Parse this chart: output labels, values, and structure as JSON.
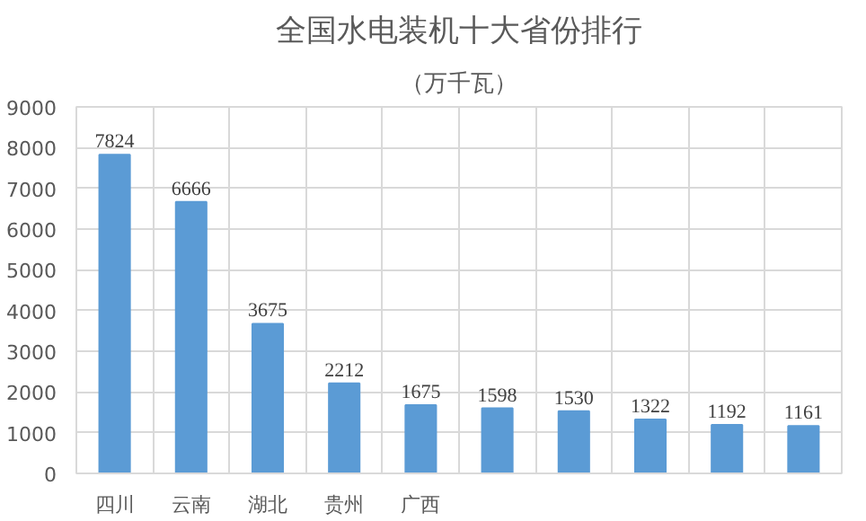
{
  "chart_data": {
    "type": "bar",
    "title": "全国水电装机十大省份排行",
    "subtitle": "（万千瓦）",
    "categories": [
      "四川",
      "云南",
      "湖北",
      "贵州",
      "广西",
      null,
      null,
      null,
      null,
      null
    ],
    "values": [
      7824,
      6666,
      3675,
      2212,
      1675,
      1598,
      1530,
      1322,
      1192,
      1161
    ],
    "color": "#5b9bd5",
    "ylim": [
      0,
      9000
    ],
    "yticks": [
      0,
      1000,
      2000,
      3000,
      4000,
      5000,
      6000,
      7000,
      8000,
      9000
    ],
    "grid": true,
    "data_labels": true
  }
}
